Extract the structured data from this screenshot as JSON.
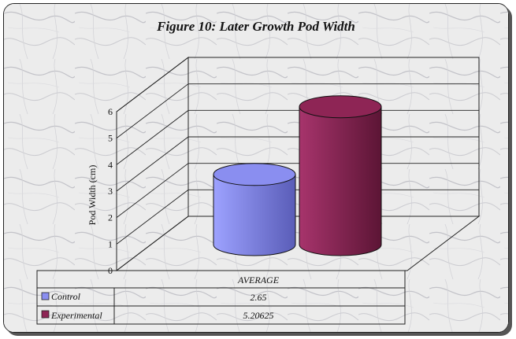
{
  "chart_data": {
    "type": "bar",
    "title": "Figure 10: Later Growth Pod Width",
    "ylabel": "Pod Width (cm)",
    "xlabel": "",
    "categories": [
      "AVERAGE"
    ],
    "ylim": [
      0,
      6
    ],
    "yticks": [
      0,
      1,
      2,
      3,
      4,
      5,
      6
    ],
    "grid": true,
    "legend": "data-table",
    "series": [
      {
        "name": "Control",
        "values": [
          2.65
        ],
        "value_label": "2.65",
        "color": "#8a8ef0"
      },
      {
        "name": "Experimental",
        "values": [
          5.20625
        ],
        "value_label": "5.20625",
        "color": "#8e2555"
      }
    ]
  }
}
